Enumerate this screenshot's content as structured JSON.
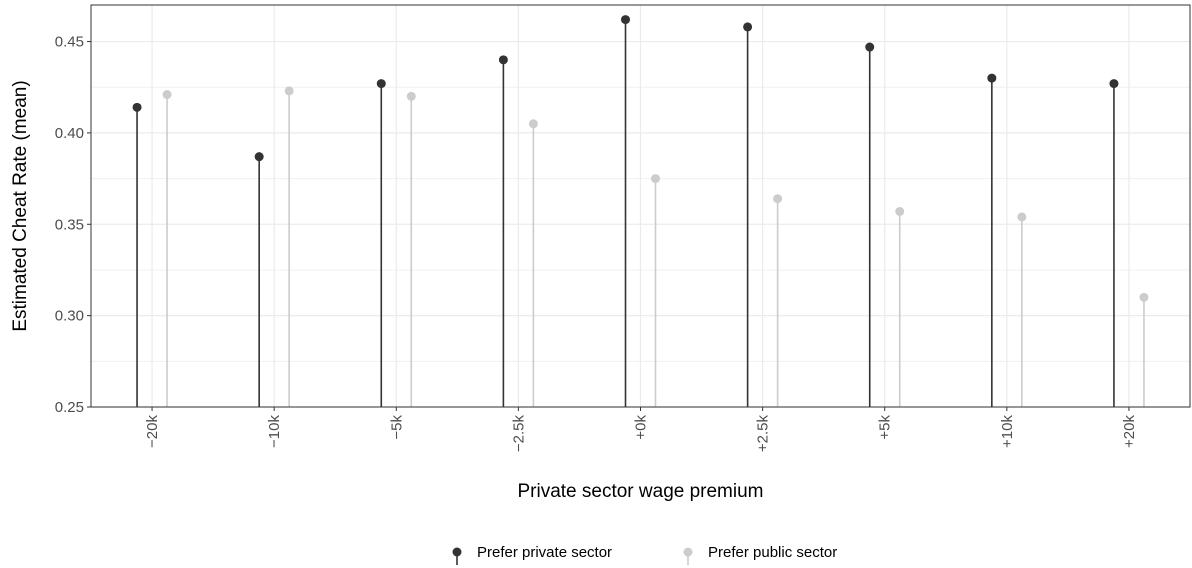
{
  "chart_data": {
    "type": "lollipop",
    "xlabel": "Private sector wage premium",
    "ylabel": "Estimated Cheat Rate (mean)",
    "categories": [
      "−20k",
      "−10k",
      "−5k",
      "−2.5k",
      "+0k",
      "+2.5k",
      "+5k",
      "+10k",
      "+20k"
    ],
    "ylim": [
      0.25,
      0.47
    ],
    "baseline": 0.25,
    "yticks": [
      0.25,
      0.3,
      0.35,
      0.4,
      0.45
    ],
    "ytick_labels": [
      "0.25",
      "0.30",
      "0.35",
      "0.40",
      "0.45"
    ],
    "series": [
      {
        "name": "Prefer private sector",
        "color": "#333333",
        "values": [
          0.414,
          0.387,
          0.427,
          0.44,
          0.462,
          0.458,
          0.447,
          0.43,
          0.427
        ]
      },
      {
        "name": "Prefer public sector",
        "color": "#cccccc",
        "values": [
          0.421,
          0.423,
          0.42,
          0.405,
          0.375,
          0.364,
          0.357,
          0.354,
          0.31
        ]
      }
    ],
    "grid": true,
    "legend_position": "bottom",
    "tick_label_rotation": "vertical"
  }
}
